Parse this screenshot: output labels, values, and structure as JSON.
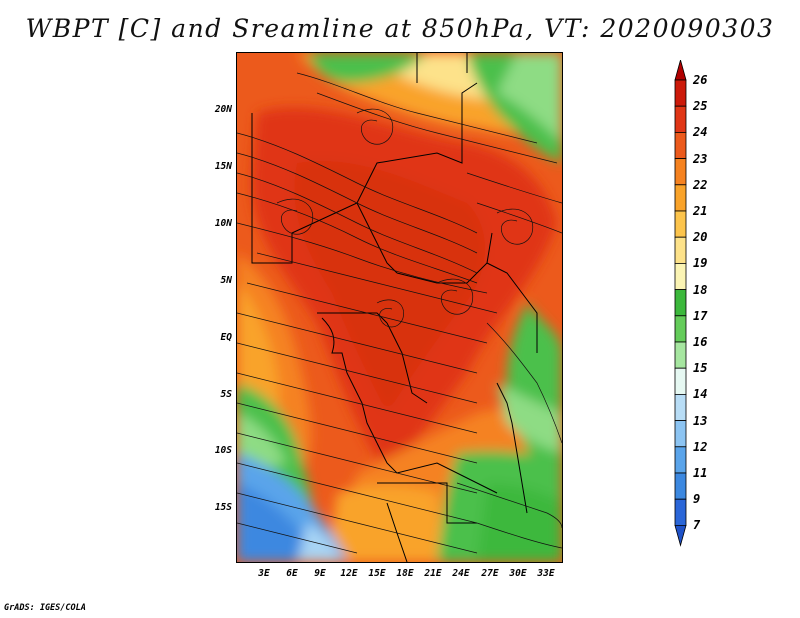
{
  "title": "WBPT [C] and Sreamline at 850hPa, VT: 2020090303",
  "footer": "GrADS: IGES/COLA",
  "lat_labels": [
    "20N",
    "15N",
    "10N",
    "5N",
    "EQ",
    "5S",
    "10S",
    "15S"
  ],
  "lon_labels": [
    "3E",
    "6E",
    "9E",
    "12E",
    "15E",
    "18E",
    "21E",
    "24E",
    "27E",
    "30E",
    "33E"
  ],
  "colorbar": {
    "labels": [
      "26",
      "25",
      "24",
      "23",
      "22",
      "21",
      "20",
      "19",
      "18",
      "17",
      "16",
      "15",
      "14",
      "13",
      "12",
      "11",
      "9",
      "7"
    ],
    "colors": [
      "#b00000",
      "#cc1a0a",
      "#e03616",
      "#ec5a1c",
      "#f58220",
      "#f9a32a",
      "#fcc44c",
      "#fde28a",
      "#fbf4b4",
      "#3cb83c",
      "#64cc5a",
      "#a6e6a0",
      "#e6f8f2",
      "#b8ddf6",
      "#8cc4f2",
      "#5aa4ea",
      "#3c88e0",
      "#2a66d8",
      "#1f52c8"
    ]
  },
  "map": {
    "colors": {
      "hot": "#e03616",
      "warm": "#ec5a1c",
      "orange": "#f58220",
      "amber": "#f9a32a",
      "yellow": "#fde28a",
      "green": "#4cc04c",
      "lightgreen": "#8edc84",
      "blue": "#5aa4ea",
      "lightblue": "#a8d4f4"
    }
  }
}
